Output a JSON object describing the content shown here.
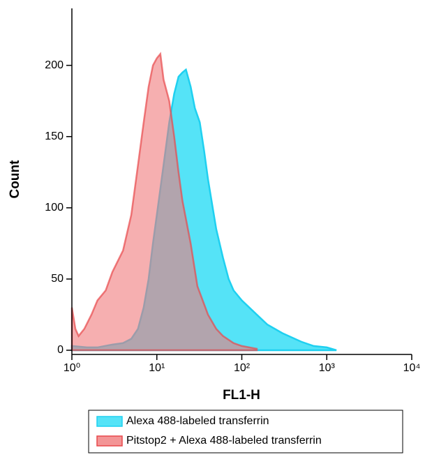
{
  "chart_data": {
    "type": "area",
    "xlabel": "FL1-H",
    "ylabel": "Count",
    "xscale": "log",
    "xlim": [
      1,
      10000
    ],
    "xticks": [
      {
        "value": 1,
        "label": "10⁰"
      },
      {
        "value": 10,
        "label": "10¹"
      },
      {
        "value": 100,
        "label": "10²"
      },
      {
        "value": 1000,
        "label": "10³"
      },
      {
        "value": 10000,
        "label": "10⁴"
      }
    ],
    "ylim": [
      0,
      240
    ],
    "yticks": [
      0,
      50,
      100,
      150,
      200
    ],
    "series": [
      {
        "name": "Alexa 488-labeled transferrin",
        "color": "#1fd0f0",
        "fill": "#55e3f7",
        "x": [
          1,
          1.5,
          2,
          3,
          4,
          5,
          6,
          7,
          8,
          9,
          10,
          12,
          14,
          16,
          18,
          20,
          22,
          25,
          28,
          32,
          36,
          40,
          50,
          60,
          70,
          80,
          100,
          150,
          200,
          300,
          500,
          700,
          1000,
          1300
        ],
        "values": [
          3,
          2,
          2,
          4,
          5,
          8,
          15,
          30,
          50,
          75,
          95,
          130,
          160,
          180,
          192,
          195,
          197,
          185,
          170,
          160,
          140,
          120,
          85,
          65,
          50,
          42,
          35,
          25,
          18,
          12,
          6,
          3,
          2,
          0
        ]
      },
      {
        "name": "Pitstop2 + Alexa 488-labeled transferrin",
        "color": "#e8484c",
        "fill": "#f07a7c",
        "x": [
          1,
          1.1,
          1.2,
          1.4,
          1.7,
          2,
          2.5,
          3,
          4,
          5,
          6,
          7,
          8,
          9,
          10,
          11,
          12,
          14,
          16,
          18,
          20,
          25,
          30,
          40,
          50,
          60,
          80,
          100,
          150
        ],
        "values": [
          30,
          15,
          10,
          15,
          25,
          35,
          42,
          55,
          70,
          95,
          130,
          160,
          185,
          200,
          205,
          208,
          190,
          175,
          150,
          125,
          105,
          75,
          45,
          25,
          15,
          10,
          5,
          3,
          1
        ]
      }
    ]
  }
}
